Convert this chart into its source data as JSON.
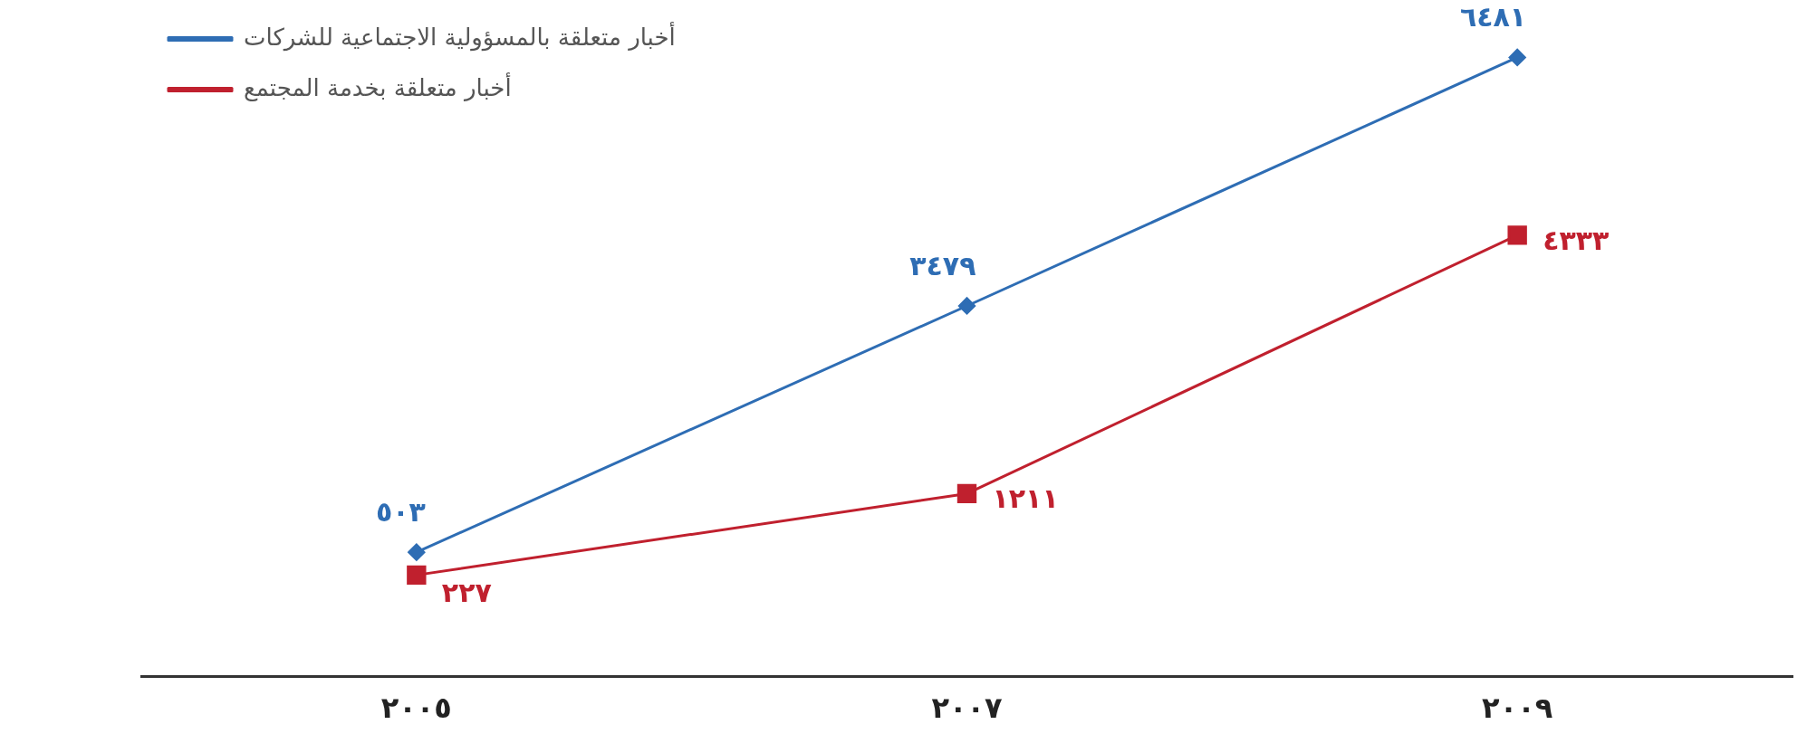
{
  "chart_data": {
    "type": "line",
    "categories": [
      "٢٠٠٥",
      "٢٠٠٧",
      "٢٠٠٩"
    ],
    "series": [
      {
        "name": "أخبار متعلقة بالمسؤولية الاجتماعية للشركات",
        "color": "#2e6db4",
        "marker": "diamond",
        "values": [
          503,
          3479,
          6481
        ],
        "value_labels": [
          "٥٠٣",
          "٣٤٧٩",
          "٦٤٨١"
        ]
      },
      {
        "name": "أخبار متعلقة بخدمة المجتمع",
        "color": "#c0202e",
        "marker": "square",
        "values": [
          227,
          1211,
          4333
        ],
        "value_labels": [
          "٢٢٧",
          "١٢١١",
          "٤٣٣٣"
        ]
      }
    ],
    "tick_labels": "x",
    "grid": false,
    "legend": "top left",
    "line_style": "solid"
  }
}
